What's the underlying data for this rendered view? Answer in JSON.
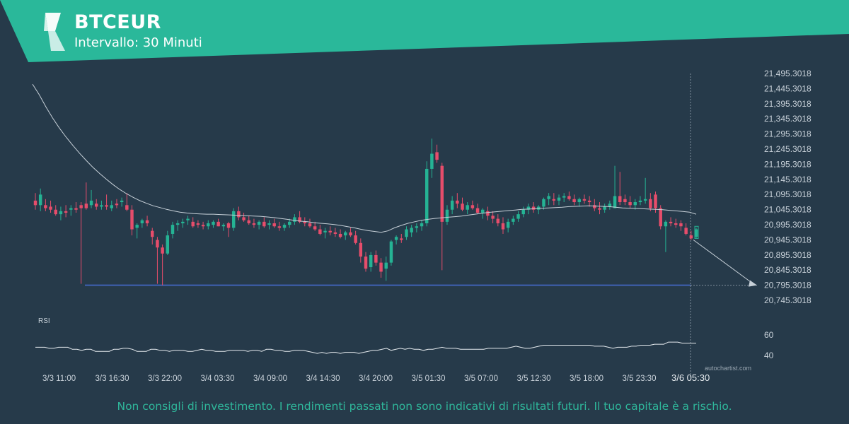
{
  "header": {
    "symbol": "BTCEUR",
    "interval": "Intervallo: 30 Minuti",
    "banner_color": "#2ab89a"
  },
  "chart_data": {
    "type": "candlestick",
    "price_axis": {
      "ticks": [
        "21,495.3018",
        "21,445.3018",
        "21,395.3018",
        "21,345.3018",
        "21,295.3018",
        "21,245.3018",
        "21,195.3018",
        "21,145.3018",
        "21,095.3018",
        "21,045.3018",
        "20,995.3018",
        "20,945.3018",
        "20,895.3018",
        "20,845.3018",
        "20,795.3018",
        "20,745.3018"
      ],
      "ylim": [
        20730,
        21510
      ]
    },
    "time_axis": {
      "labels": [
        "3/3 11:00",
        "3/3 16:30",
        "3/3 22:00",
        "3/4 03:30",
        "3/4 09:00",
        "3/4 14:30",
        "3/4 20:00",
        "3/5 01:30",
        "3/5 07:00",
        "3/5 12:30",
        "3/5 18:00",
        "3/5 23:30",
        "3/6 05:30"
      ],
      "highlighted": "3/6 05:30"
    },
    "support_level": 20795.3018,
    "forecast_target": 20795.3018,
    "candles": [
      [
        21075,
        21100,
        21045,
        21060
      ],
      [
        21060,
        21115,
        21040,
        21095
      ],
      [
        21060,
        21080,
        21040,
        21050
      ],
      [
        21055,
        21075,
        21035,
        21045
      ],
      [
        21045,
        21060,
        21025,
        21030
      ],
      [
        21030,
        21055,
        21010,
        21040
      ],
      [
        21040,
        21060,
        21020,
        21035
      ],
      [
        21045,
        21060,
        21025,
        21050
      ],
      [
        21050,
        21070,
        21035,
        21045
      ],
      [
        21060,
        21070,
        20800,
        21050
      ],
      [
        21065,
        21135,
        21045,
        21050
      ],
      [
        21060,
        21110,
        21050,
        21075
      ],
      [
        21065,
        21080,
        21045,
        21055
      ],
      [
        21055,
        21075,
        21045,
        21060
      ],
      [
        21060,
        21095,
        21045,
        21055
      ],
      [
        21050,
        21075,
        21040,
        21060
      ],
      [
        21065,
        21080,
        21050,
        21060
      ],
      [
        21070,
        21085,
        21055,
        21075
      ],
      [
        21060,
        21100,
        21040,
        21045
      ],
      [
        21045,
        21060,
        20960,
        20980
      ],
      [
        20985,
        21000,
        20950,
        20995
      ],
      [
        21000,
        21015,
        20985,
        21010
      ],
      [
        21010,
        21025,
        20990,
        21000
      ],
      [
        20975,
        20985,
        20930,
        20955
      ],
      [
        20945,
        20955,
        20800,
        20920
      ],
      [
        20920,
        20930,
        20795,
        20900
      ],
      [
        20900,
        20975,
        20895,
        20960
      ],
      [
        20965,
        21005,
        20950,
        20995
      ],
      [
        20995,
        21010,
        20975,
        21000
      ],
      [
        21000,
        21015,
        20985,
        21005
      ],
      [
        21010,
        21025,
        20995,
        21015
      ],
      [
        21005,
        21020,
        20985,
        20990
      ],
      [
        21000,
        21010,
        20985,
        20995
      ],
      [
        20995,
        21005,
        20980,
        20990
      ],
      [
        20990,
        21010,
        20980,
        21000
      ],
      [
        20995,
        21010,
        20985,
        21005
      ],
      [
        21005,
        21015,
        20990,
        20990
      ],
      [
        20990,
        21000,
        20975,
        20995
      ],
      [
        21000,
        21005,
        20955,
        20985
      ],
      [
        20985,
        21050,
        20975,
        21040
      ],
      [
        21040,
        21055,
        21010,
        21020
      ],
      [
        21020,
        21035,
        21005,
        21010
      ],
      [
        21010,
        21025,
        20995,
        21000
      ],
      [
        21000,
        21015,
        20985,
        20995
      ],
      [
        20995,
        21010,
        20980,
        21005
      ],
      [
        21005,
        21020,
        20985,
        20990
      ],
      [
        20995,
        21010,
        20980,
        21000
      ],
      [
        21000,
        21015,
        20985,
        20990
      ],
      [
        20990,
        21005,
        20975,
        20985
      ],
      [
        20985,
        21000,
        20975,
        20995
      ],
      [
        20995,
        21015,
        20985,
        21005
      ],
      [
        21005,
        21030,
        20995,
        21020
      ],
      [
        21020,
        21040,
        21000,
        21005
      ],
      [
        21005,
        21020,
        20990,
        21000
      ],
      [
        21000,
        21015,
        20985,
        20990
      ],
      [
        20990,
        21005,
        20975,
        20980
      ],
      [
        20980,
        20995,
        20960,
        20965
      ],
      [
        20970,
        20985,
        20950,
        20975
      ],
      [
        20975,
        20990,
        20960,
        20970
      ],
      [
        20970,
        20985,
        20955,
        20965
      ],
      [
        20965,
        20980,
        20950,
        20955
      ],
      [
        20960,
        20975,
        20945,
        20970
      ],
      [
        20970,
        20985,
        20955,
        20960
      ],
      [
        20960,
        20975,
        20930,
        20935
      ],
      [
        20935,
        20950,
        20870,
        20890
      ],
      [
        20890,
        20905,
        20840,
        20850
      ],
      [
        20855,
        20905,
        20840,
        20895
      ],
      [
        20895,
        20910,
        20860,
        20870
      ],
      [
        20870,
        20885,
        20820,
        20840
      ],
      [
        20850,
        20890,
        20810,
        20870
      ],
      [
        20870,
        20945,
        20860,
        20940
      ],
      [
        20945,
        20960,
        20930,
        20955
      ],
      [
        20950,
        20965,
        20935,
        20945
      ],
      [
        20955,
        20990,
        20945,
        20980
      ],
      [
        20970,
        20995,
        20955,
        20985
      ],
      [
        20985,
        21000,
        20970,
        20990
      ],
      [
        20990,
        21010,
        20975,
        21000
      ],
      [
        21000,
        21205,
        20990,
        21180
      ],
      [
        21180,
        21280,
        21150,
        21230
      ],
      [
        21235,
        21260,
        21200,
        21210
      ],
      [
        21190,
        21200,
        20845,
        21005
      ],
      [
        21005,
        21060,
        20995,
        21045
      ],
      [
        21045,
        21090,
        21030,
        21075
      ],
      [
        21075,
        21100,
        21050,
        21065
      ],
      [
        21065,
        21085,
        21040,
        21045
      ],
      [
        21045,
        21070,
        21030,
        21060
      ],
      [
        21060,
        21075,
        21045,
        21050
      ],
      [
        21050,
        21065,
        21030,
        21035
      ],
      [
        21035,
        21050,
        21015,
        21045
      ],
      [
        21040,
        21055,
        21010,
        21025
      ],
      [
        21025,
        21040,
        21000,
        21015
      ],
      [
        21015,
        21030,
        20990,
        21000
      ],
      [
        21000,
        21020,
        20965,
        20980
      ],
      [
        20985,
        21015,
        20970,
        21005
      ],
      [
        21005,
        21025,
        20995,
        21015
      ],
      [
        21015,
        21040,
        21005,
        21030
      ],
      [
        21030,
        21055,
        21020,
        21045
      ],
      [
        21045,
        21065,
        21030,
        21055
      ],
      [
        21055,
        21070,
        21035,
        21045
      ],
      [
        21045,
        21060,
        21030,
        21055
      ],
      [
        21055,
        21085,
        21045,
        21080
      ],
      [
        21080,
        21100,
        21060,
        21090
      ],
      [
        21080,
        21100,
        21060,
        21075
      ],
      [
        21075,
        21095,
        21060,
        21085
      ],
      [
        21085,
        21100,
        21070,
        21090
      ],
      [
        21090,
        21105,
        21075,
        21080
      ],
      [
        21080,
        21095,
        21060,
        21070
      ],
      [
        21070,
        21085,
        21055,
        21080
      ],
      [
        21080,
        21095,
        21065,
        21075
      ],
      [
        21075,
        21090,
        21055,
        21070
      ],
      [
        21060,
        21080,
        21040,
        21050
      ],
      [
        21050,
        21070,
        21030,
        21045
      ],
      [
        21045,
        21065,
        21035,
        21055
      ],
      [
        21055,
        21075,
        21045,
        21065
      ],
      [
        21050,
        21190,
        21050,
        21090
      ],
      [
        21090,
        21170,
        21060,
        21070
      ],
      [
        21080,
        21095,
        21060,
        21070
      ],
      [
        21070,
        21090,
        21050,
        21060
      ],
      [
        21060,
        21080,
        21045,
        21070
      ],
      [
        21070,
        21090,
        21060,
        21075
      ],
      [
        21075,
        21150,
        21065,
        21080
      ],
      [
        21080,
        21100,
        21040,
        21050
      ],
      [
        21095,
        21105,
        21035,
        21050
      ],
      [
        21050,
        21060,
        20980,
        20990
      ],
      [
        20990,
        21010,
        20905,
        21005
      ],
      [
        21005,
        21020,
        20990,
        21000
      ],
      [
        21000,
        21015,
        20985,
        20995
      ],
      [
        21000,
        21010,
        20975,
        20990
      ],
      [
        20985,
        21000,
        20960,
        20965
      ],
      [
        20960,
        20975,
        20945,
        20950
      ],
      [
        20955,
        20985,
        20950,
        20980
      ]
    ],
    "moving_average": [
      21460,
      21425,
      21385,
      21348,
      21315,
      21285,
      21258,
      21232,
      21208,
      21185,
      21165,
      21146,
      21128,
      21112,
      21098,
      21086,
      21075,
      21066,
      21058,
      21052,
      21046,
      21041,
      21037,
      21034,
      21032,
      21031,
      21030,
      21030,
      21029,
      21028,
      21027,
      21026,
      21025,
      21024,
      21023,
      21021,
      21019,
      21016,
      21013,
      21010,
      21007,
      21005,
      21002,
      21000,
      20998,
      20996,
      20993,
      20989,
      20985,
      20980,
      20976,
      20973,
      20970,
      20975,
      20985,
      20993,
      21000,
      21005,
      21010,
      21013,
      21016,
      21018,
      21020,
      21022,
      21024,
      21027,
      21030,
      21033,
      21036,
      21038,
      21040,
      21042,
      21044,
      21046,
      21047,
      21048,
      21050,
      21051,
      21052,
      21053,
      21055,
      21056,
      21057,
      21058,
      21057,
      21056,
      21055,
      21053,
      21051,
      21050,
      21049,
      21048,
      21047,
      21046,
      21045,
      21043,
      21041,
      21039,
      21037,
      21030
    ],
    "rsi": {
      "label": "RSI",
      "ticks": [
        "60",
        "40"
      ],
      "ylim": [
        30,
        70
      ],
      "values": [
        48,
        48,
        48,
        47,
        47,
        48,
        48,
        48,
        46,
        46,
        45,
        46,
        46,
        44,
        44,
        44,
        44,
        46,
        46,
        47,
        47,
        46,
        44,
        44,
        44,
        46,
        46,
        45,
        45,
        44,
        45,
        45,
        45,
        44,
        44,
        45,
        46,
        45,
        45,
        44,
        44,
        44,
        45,
        45,
        45,
        45,
        44,
        45,
        45,
        44,
        46,
        46,
        45,
        45,
        44,
        44,
        45,
        45,
        45,
        44,
        43,
        42,
        43,
        42,
        43,
        43,
        42,
        43,
        43,
        43,
        42,
        43,
        44,
        45,
        45,
        46,
        47,
        45,
        46,
        47,
        46,
        47,
        46,
        46,
        45,
        46,
        46,
        47,
        48,
        47,
        47,
        47,
        46,
        46,
        46,
        46,
        46,
        46,
        47,
        47,
        47,
        47,
        47,
        48,
        49,
        48,
        47,
        47,
        48,
        49,
        50,
        50,
        50,
        50,
        50,
        50,
        50,
        50,
        50,
        50,
        50,
        49,
        49,
        49,
        48,
        47,
        48,
        48,
        48,
        49,
        49,
        50,
        50,
        50,
        51,
        51,
        51,
        53,
        53,
        53,
        52,
        52,
        52,
        52
      ]
    }
  },
  "watermark": "autochartist.com",
  "disclaimer": "Non consigli di investimento. I rendimenti passati non sono indicativi di risultati futuri. Il tuo capitale è a rischio.",
  "colors": {
    "background": "#263a4a",
    "bull": "#25b394",
    "bear": "#e74d6b",
    "support": "#3f62b5",
    "ma": "#c7d0d8",
    "text": "#c9d2da",
    "accent": "#2fb79b"
  }
}
